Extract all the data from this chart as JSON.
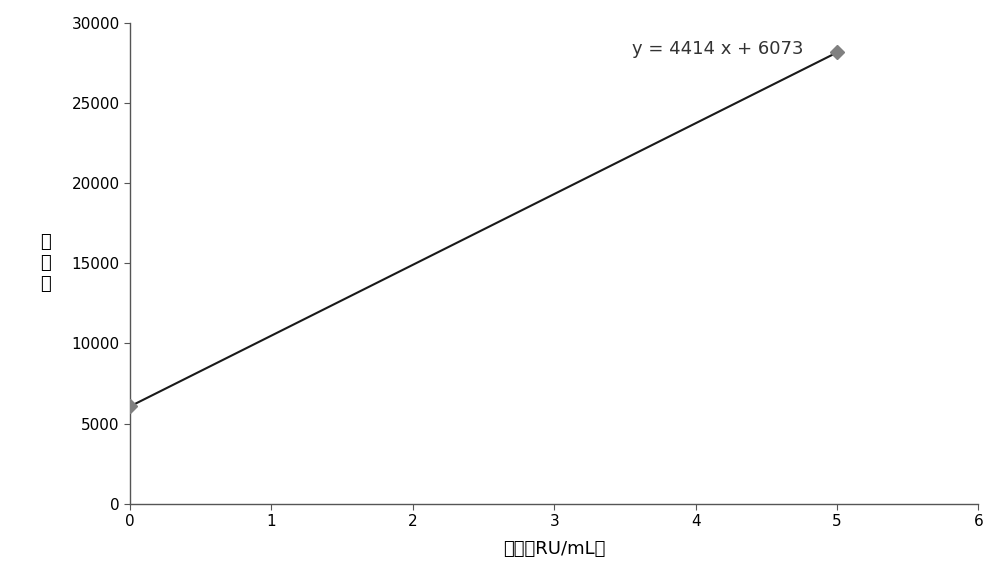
{
  "x_data": [
    0,
    5
  ],
  "y_data": [
    6073,
    28143
  ],
  "slope": 4414,
  "intercept": 6073,
  "equation": "y = 4414 x + 6073",
  "xlabel": "浓度（RU/mL）",
  "ylabel": "发光値",
  "xlim": [
    0,
    6
  ],
  "ylim": [
    0,
    30000
  ],
  "xticks": [
    0,
    1,
    2,
    3,
    4,
    5,
    6
  ],
  "yticks": [
    0,
    5000,
    10000,
    15000,
    20000,
    25000,
    30000
  ],
  "line_color": "#1a1a1a",
  "marker_color": "#808080",
  "equation_color": "#333333",
  "background_color": "#ffffff",
  "eq_x": 3.55,
  "eq_y": 27800,
  "marker_size": 7,
  "line_width": 1.5,
  "spine_color": "#555555"
}
